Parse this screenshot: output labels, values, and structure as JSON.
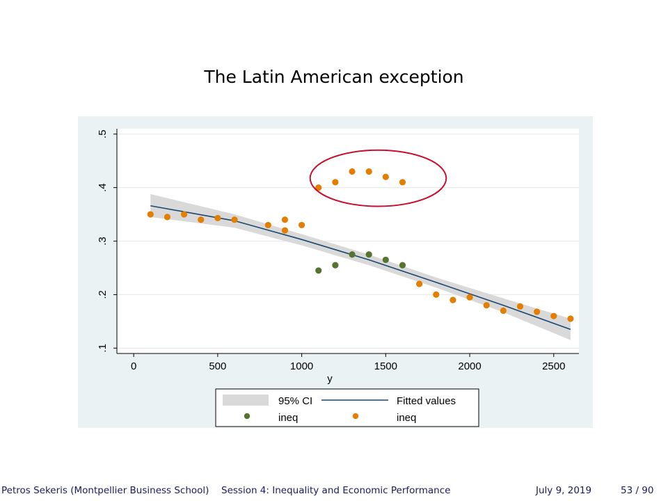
{
  "slide": {
    "title": "The Latin American exception",
    "footer": {
      "author": "Petros Sekeris (Montpellier Business School)",
      "talk_title": "Session 4: Inequality and Economic Performance",
      "date": "July 9, 2019",
      "page": "53 / 90"
    }
  },
  "chart_data": {
    "type": "scatter",
    "xlabel": "y",
    "ylabel": "",
    "xlim": [
      -100,
      2650
    ],
    "ylim": [
      0.09,
      0.51
    ],
    "x_ticks": [
      0,
      500,
      1000,
      1500,
      2000,
      2500
    ],
    "x_tick_labels": [
      "0",
      "500",
      "1000",
      "1500",
      "2000",
      "2500"
    ],
    "y_ticks": [
      0.1,
      0.2,
      0.3,
      0.4,
      0.5
    ],
    "y_tick_labels": [
      ".1",
      ".2",
      ".3",
      ".4",
      ".5"
    ],
    "grid": true,
    "legend_position": "bottom",
    "legend_items": [
      "95% CI",
      "Fitted values",
      "ineq",
      "ineq"
    ],
    "colors": {
      "ci": "#d9d9d9",
      "fitted": "#1a476f",
      "green": "#55752f",
      "orange": "#e37e00",
      "highlight": "#c8102e",
      "panel": "#eaf2f3",
      "plot": "#ffffff"
    },
    "fitted": {
      "name": "Fitted values",
      "x": [
        100,
        600,
        1000,
        1400,
        1800,
        2200,
        2600
      ],
      "y": [
        0.366,
        0.338,
        0.303,
        0.265,
        0.223,
        0.18,
        0.135
      ],
      "ci_upper": [
        0.388,
        0.35,
        0.313,
        0.275,
        0.232,
        0.193,
        0.155
      ],
      "ci_lower": [
        0.345,
        0.325,
        0.292,
        0.255,
        0.213,
        0.167,
        0.115
      ]
    },
    "series": [
      {
        "name": "ineq",
        "color": "green",
        "x": [
          1100,
          1200,
          1300,
          1400,
          1500,
          1600
        ],
        "y": [
          0.245,
          0.255,
          0.275,
          0.275,
          0.265,
          0.255
        ]
      },
      {
        "name": "ineq",
        "color": "orange",
        "x": [
          100,
          200,
          300,
          400,
          500,
          600,
          800,
          900,
          900,
          1000,
          1100,
          1200,
          1300,
          1400,
          1500,
          1600,
          1700,
          1800,
          1900,
          2000,
          2100,
          2200,
          2300,
          2400,
          2500,
          2600
        ],
        "y": [
          0.35,
          0.345,
          0.35,
          0.34,
          0.343,
          0.34,
          0.33,
          0.34,
          0.32,
          0.33,
          0.4,
          0.41,
          0.43,
          0.43,
          0.42,
          0.41,
          0.22,
          0.2,
          0.19,
          0.195,
          0.18,
          0.17,
          0.178,
          0.168,
          0.16,
          0.155
        ]
      }
    ],
    "annotation": {
      "shape": "ellipse",
      "color": "highlight",
      "x_range": [
        1050,
        1860
      ],
      "y_range": [
        0.365,
        0.47
      ]
    }
  }
}
